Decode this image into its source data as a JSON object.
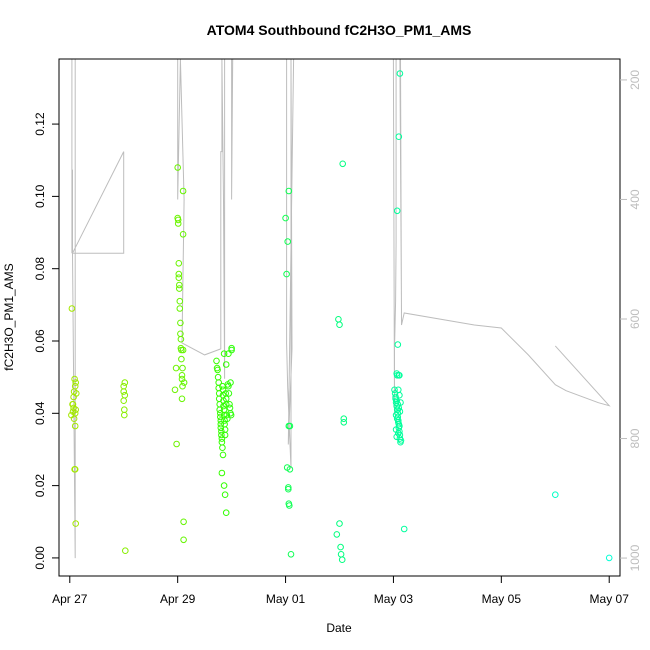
{
  "chart_data": {
    "type": "scatter",
    "title": "ATOM4 Southbound fC2H3O_PM1_AMS",
    "xlabel": "Date",
    "ylabel": "fC2H3O_PM1_AMS",
    "x_unit": "days since Apr 27",
    "xlim": [
      -0.2,
      10.2
    ],
    "ylim": [
      -0.005,
      0.138
    ],
    "x_ticks": [
      {
        "value": 0,
        "label": "Apr 27"
      },
      {
        "value": 2,
        "label": "Apr 29"
      },
      {
        "value": 4,
        "label": "May 01"
      },
      {
        "value": 6,
        "label": "May 03"
      },
      {
        "value": 8,
        "label": "May 05"
      },
      {
        "value": 10,
        "label": "May 07"
      }
    ],
    "y_ticks": [
      0.0,
      0.02,
      0.04,
      0.06,
      0.08,
      0.1,
      0.12
    ],
    "y_tick_labels": [
      "0.00",
      "0.02",
      "0.04",
      "0.06",
      "0.08",
      "0.10",
      "0.12"
    ],
    "right_axis": {
      "description": "secondary axis (gray line series), inverted",
      "ticks": [
        200,
        400,
        600,
        800,
        1000
      ],
      "tick_labels": [
        "200",
        "400",
        "600",
        "800",
        "1000"
      ],
      "range": [
        165,
        1030
      ],
      "color": "#bdbdbd"
    },
    "series": [
      {
        "name": "fC2H3O_PM1_AMS",
        "kind": "points",
        "color_gradient": [
          "#a6e800",
          "#00ffd5"
        ],
        "x": [
          0.03,
          0.04,
          0.05,
          0.06,
          0.06,
          0.07,
          0.07,
          0.08,
          0.08,
          0.09,
          0.09,
          0.1,
          0.1,
          0.1,
          0.1,
          0.11,
          0.11,
          0.11,
          0.12,
          1.0,
          1.0,
          1.0,
          1.01,
          1.01,
          1.02,
          1.02,
          1.03,
          1.95,
          1.97,
          1.98,
          2.0,
          2.0,
          2.01,
          2.01,
          2.02,
          2.02,
          2.02,
          2.03,
          2.03,
          2.04,
          2.04,
          2.05,
          2.05,
          2.06,
          2.06,
          2.07,
          2.07,
          2.08,
          2.08,
          2.08,
          2.09,
          2.09,
          2.1,
          2.1,
          2.1,
          2.11,
          2.11,
          2.12,
          2.72,
          2.73,
          2.74,
          2.75,
          2.76,
          2.76,
          2.77,
          2.77,
          2.78,
          2.78,
          2.79,
          2.79,
          2.8,
          2.8,
          2.8,
          2.81,
          2.81,
          2.82,
          2.82,
          2.83,
          2.83,
          2.84,
          2.84,
          2.85,
          2.85,
          2.86,
          2.86,
          2.87,
          2.87,
          2.88,
          2.88,
          2.89,
          2.9,
          2.9,
          2.91,
          2.92,
          2.93,
          2.94,
          2.95,
          2.96,
          2.97,
          2.98,
          2.99,
          3.0,
          3.0,
          2.82,
          2.84,
          2.86,
          2.88,
          2.9,
          2.86,
          2.9,
          2.94,
          2.98,
          4.0,
          4.02,
          4.04,
          4.06,
          4.08,
          4.03,
          4.05,
          4.06,
          4.07,
          4.05,
          4.1,
          4.06,
          4.08,
          4.95,
          4.98,
          5.0,
          5.0,
          5.02,
          5.03,
          5.05,
          5.06,
          5.08,
          5.08,
          6.02,
          6.03,
          6.04,
          6.05,
          6.06,
          6.07,
          6.08,
          6.08,
          6.09,
          6.1,
          6.1,
          6.11,
          6.12,
          6.12,
          6.13,
          6.14,
          6.04,
          6.06,
          6.08,
          6.1,
          6.12,
          6.05,
          6.07,
          6.09,
          6.11,
          6.05,
          6.09,
          6.06,
          6.08,
          6.1,
          6.07,
          6.09,
          6.11,
          6.13,
          6.08,
          6.1,
          6.12,
          6.07,
          6.06,
          6.11,
          6.2,
          9.0,
          10.0
        ],
        "y": [
          0.0395,
          0.069,
          0.0425,
          0.0405,
          0.0425,
          0.0415,
          0.0445,
          0.0385,
          0.046,
          0.0495,
          0.0245,
          0.0245,
          0.0475,
          0.04,
          0.0365,
          0.041,
          0.0095,
          0.0485,
          0.0455,
          0.0475,
          0.046,
          0.0435,
          0.041,
          0.0395,
          0.0485,
          0.045,
          0.002,
          0.0465,
          0.0525,
          0.0315,
          0.108,
          0.094,
          0.0925,
          0.0935,
          0.0775,
          0.0785,
          0.0815,
          0.0755,
          0.0745,
          0.071,
          0.069,
          0.065,
          0.062,
          0.0605,
          0.058,
          0.0575,
          0.055,
          0.0505,
          0.0495,
          0.044,
          0.0475,
          0.0525,
          0.0575,
          0.0895,
          0.1015,
          0.01,
          0.005,
          0.0485,
          0.0545,
          0.0525,
          0.052,
          0.05,
          0.0485,
          0.047,
          0.0455,
          0.044,
          0.0425,
          0.041,
          0.04,
          0.039,
          0.038,
          0.037,
          0.036,
          0.035,
          0.034,
          0.033,
          0.032,
          0.0305,
          0.0475,
          0.0465,
          0.045,
          0.0435,
          0.042,
          0.041,
          0.0395,
          0.038,
          0.037,
          0.0355,
          0.034,
          0.0455,
          0.044,
          0.0425,
          0.0395,
          0.0385,
          0.048,
          0.0475,
          0.0455,
          0.0425,
          0.0415,
          0.04,
          0.0395,
          0.058,
          0.0575,
          0.0235,
          0.0285,
          0.02,
          0.0175,
          0.0125,
          0.0565,
          0.0535,
          0.0565,
          0.0485,
          0.094,
          0.0785,
          0.0875,
          0.1015,
          0.0365,
          0.025,
          0.019,
          0.015,
          0.0145,
          0.0195,
          0.001,
          0.0365,
          0.0245,
          0.0065,
          0.066,
          0.0645,
          0.0095,
          0.003,
          0.001,
          -0.0005,
          0.109,
          0.0385,
          0.0375,
          0.0465,
          0.0455,
          0.044,
          0.043,
          0.042,
          0.041,
          0.04,
          0.039,
          0.038,
          0.037,
          0.036,
          0.035,
          0.034,
          0.033,
          0.032,
          0.0325,
          0.0445,
          0.0435,
          0.0425,
          0.0415,
          0.0405,
          0.0395,
          0.0385,
          0.0375,
          0.0365,
          0.0355,
          0.0345,
          0.0335,
          0.059,
          0.0505,
          0.0505,
          0.0465,
          0.045,
          0.043,
          0.041,
          0.1165,
          0.134,
          0.096,
          0.051,
          0.0505,
          0.008,
          0.0175,
          0.0
        ]
      },
      {
        "name": "secondary",
        "kind": "line",
        "color": "#bdbdbd",
        "x": [
          0.04,
          0.04,
          0.04,
          0.05,
          0.05,
          0.05,
          1.0,
          1.0,
          0.05,
          0.1,
          0.1,
          0.1,
          1.0,
          1.0,
          1.0,
          2.0,
          2.0,
          2.0,
          2.05,
          2.05,
          2.05,
          2.12,
          2.08,
          2.5,
          2.8,
          2.8,
          2.82,
          2.82,
          2.82,
          2.85,
          2.87,
          2.87,
          2.87,
          2.95,
          2.96,
          2.96,
          2.96,
          3.0,
          3.0,
          3.02,
          4.02,
          4.02,
          4.04,
          4.1,
          4.1,
          4.12,
          4.05,
          4.15,
          4.45,
          4.6,
          4.82,
          4.96,
          5.0,
          5.0,
          5.0,
          5.02,
          5.05,
          5.07,
          5.07,
          5.05,
          5.07,
          5.07,
          5.07,
          5.07,
          5.1,
          5.2,
          5.5,
          5.8,
          6.0,
          6.0,
          6.02,
          6.02,
          6.04,
          6.05,
          6.05,
          6.08,
          6.1,
          6.1,
          6.12,
          6.15,
          6.12,
          6.1,
          6.13,
          6.15,
          6.2,
          7.5,
          8.0,
          8.5,
          9.0,
          9.2,
          9.5,
          9.8,
          10.0,
          9.0
        ],
        "y": [
          165,
          400,
          490,
          350,
          490,
          490,
          490,
          320,
          490,
          1000,
          165,
          165,
          165,
          165,
          165,
          165,
          165,
          400,
          165,
          165,
          165,
          400,
          640,
          660,
          650,
          320,
          320,
          165,
          165,
          400,
          700,
          165,
          165,
          165,
          165,
          165,
          165,
          165,
          400,
          165,
          165,
          640,
          715,
          850,
          165,
          650,
          810,
          165,
          165,
          165,
          165,
          165,
          165,
          165,
          165,
          165,
          165,
          165,
          165,
          165,
          165,
          165,
          165,
          165,
          165,
          165,
          165,
          165,
          165,
          165,
          760,
          650,
          570,
          470,
          165,
          165,
          165,
          165,
          165,
          590,
          165,
          165,
          165,
          610,
          590,
          610,
          615,
          660,
          710,
          720,
          730,
          740,
          745,
          645
        ]
      }
    ]
  }
}
